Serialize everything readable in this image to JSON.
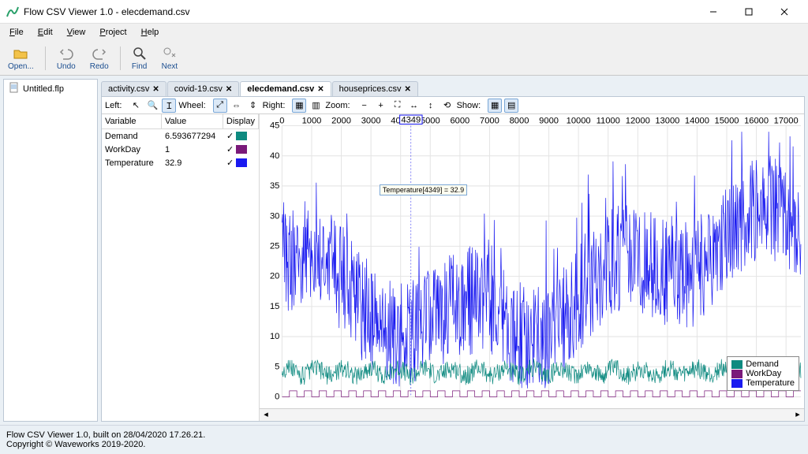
{
  "window": {
    "title": "Flow CSV Viewer 1.0 - elecdemand.csv"
  },
  "menu": [
    "File",
    "Edit",
    "View",
    "Project",
    "Help"
  ],
  "toolbar": [
    {
      "name": "open",
      "label": "Open..."
    },
    {
      "name": "undo",
      "label": "Undo"
    },
    {
      "name": "redo",
      "label": "Redo"
    },
    {
      "name": "find",
      "label": "Find"
    },
    {
      "name": "next",
      "label": "Next"
    }
  ],
  "sidebar_file": "Untitled.flp",
  "tabs": [
    {
      "label": "activity.csv",
      "active": false
    },
    {
      "label": "covid-19.csv",
      "active": false
    },
    {
      "label": "elecdemand.csv",
      "active": true
    },
    {
      "label": "houseprices.csv",
      "active": false
    }
  ],
  "ctrlbar": {
    "left": "Left:",
    "wheel": "Wheel:",
    "right": "Right:",
    "zoom": "Zoom:",
    "show": "Show:"
  },
  "vartable": {
    "headers": [
      "Variable",
      "Value",
      "Display"
    ],
    "rows": [
      {
        "name": "Demand",
        "value": "6.593677294",
        "color": "#0e8a80"
      },
      {
        "name": "WorkDay",
        "value": "1",
        "color": "#7a1a7a"
      },
      {
        "name": "Temperature",
        "value": "32.9",
        "color": "#1a1af0"
      }
    ]
  },
  "chart": {
    "xmin": 0,
    "xmax": 17500,
    "xtick_step": 1000,
    "ymin": 0,
    "ymax": 45,
    "ytick_step": 5,
    "cursor_x": 4349,
    "tooltip": "Temperature[4349] = 32.9",
    "grid_color": "#e4e4e4",
    "bg": "#ffffff",
    "series": {
      "temperature": {
        "color": "#1a1af0",
        "noise_amp": 9,
        "base_shape": "temp"
      },
      "demand": {
        "color": "#0e8a80",
        "noise_amp": 1.6,
        "base": 3.5
      },
      "workday": {
        "color": "#7a1a7a",
        "hi": 1,
        "lo": 0
      }
    },
    "legend": [
      "Demand",
      "WorkDay",
      "Temperature"
    ]
  },
  "footer": {
    "l1": "Flow CSV Viewer 1.0, built on 28/04/2020 17.26.21.",
    "l2": "Copyright © Waveworks 2019-2020."
  }
}
